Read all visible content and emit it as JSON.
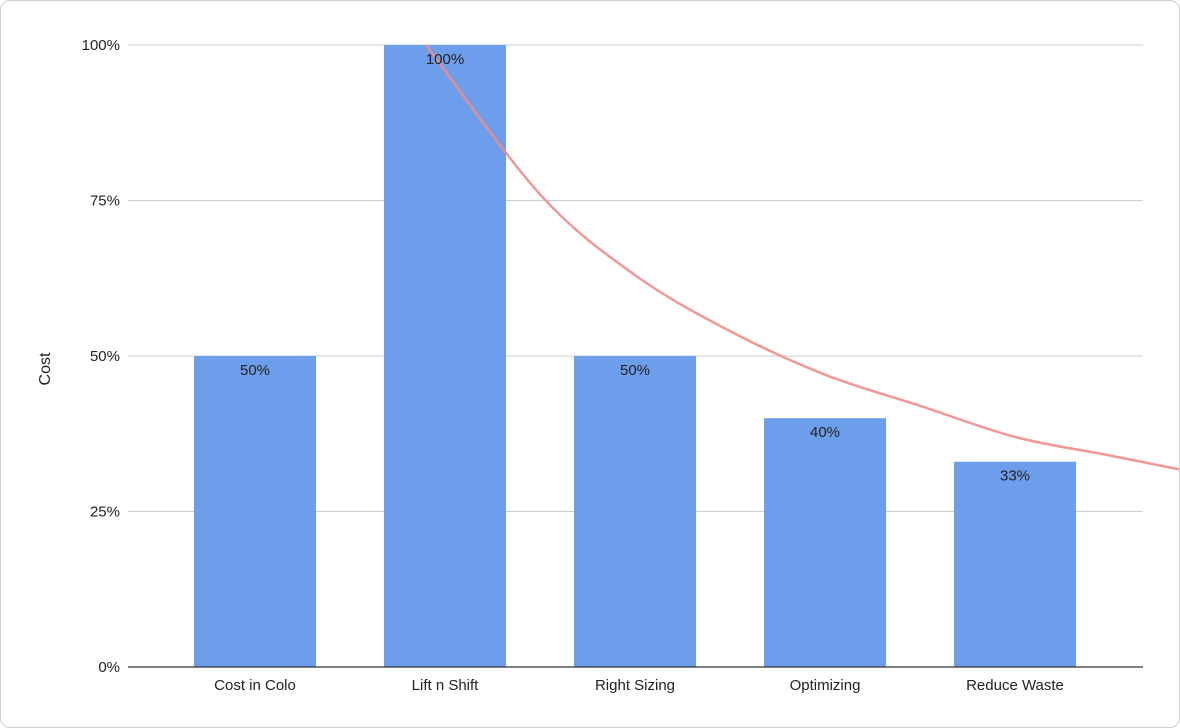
{
  "chart_data": {
    "type": "bar",
    "title": "",
    "xlabel": "",
    "ylabel": "Cost",
    "ylim": [
      0,
      100
    ],
    "y_ticks": [
      0,
      25,
      50,
      75,
      100
    ],
    "y_tick_labels": [
      "0%",
      "25%",
      "50%",
      "75%",
      "100%"
    ],
    "categories": [
      "Cost in Colo",
      "Lift n Shift",
      "Right Sizing",
      "Optimizing",
      "Reduce Waste"
    ],
    "values": [
      50,
      100,
      50,
      40,
      33
    ],
    "data_labels": [
      "50%",
      "100%",
      "50%",
      "40%",
      "33%"
    ],
    "grid": true,
    "legend": "none",
    "colors": {
      "bar": "#6d9eeb",
      "trendline": "#f28b8b",
      "grid": "#cccccc",
      "axis": "#333333",
      "text": "#222222"
    },
    "trendline": {
      "type": "power",
      "points": [
        {
          "x": 1.9,
          "y": 100
        },
        {
          "x": 2.5,
          "y": 76
        },
        {
          "x": 3.0,
          "y": 63
        },
        {
          "x": 3.5,
          "y": 54
        },
        {
          "x": 4.0,
          "y": 47
        },
        {
          "x": 4.5,
          "y": 42
        },
        {
          "x": 5.0,
          "y": 37
        },
        {
          "x": 5.5,
          "y": 34
        },
        {
          "x": 6.0,
          "y": 31
        },
        {
          "x": 6.6,
          "y": 28
        }
      ]
    }
  }
}
